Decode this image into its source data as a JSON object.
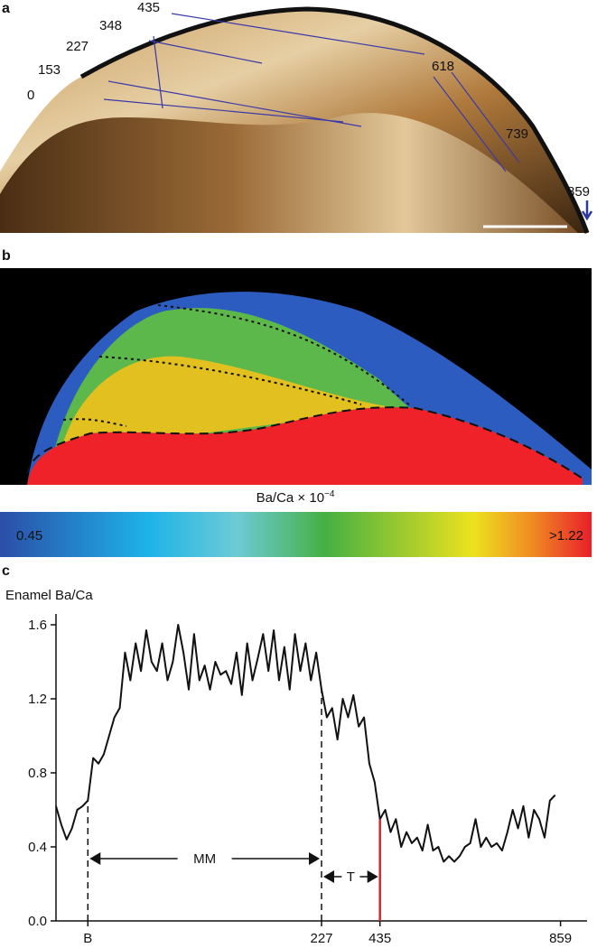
{
  "panel_a": {
    "label": "a",
    "markers": [
      0,
      153,
      227,
      348,
      435,
      618,
      739,
      859
    ]
  },
  "panel_b": {
    "label": "b",
    "colorbar": {
      "title": "Ba/Ca × 10",
      "title_exponent": "−4",
      "min_label": 0.45,
      "max_label": ">1.22"
    }
  },
  "panel_c": {
    "label": "c"
  },
  "chart_data": {
    "type": "line",
    "ylabel": "Enamel Ba/Ca",
    "x": [
      0,
      1,
      2,
      3,
      4,
      5,
      6,
      7,
      8,
      9,
      10,
      11,
      12,
      13,
      14,
      15,
      16,
      17,
      18,
      19,
      20,
      21,
      22,
      23,
      24,
      25,
      26,
      27,
      28,
      29,
      30,
      31,
      32,
      33,
      34,
      35,
      36,
      37,
      38,
      39,
      40,
      41,
      42,
      43,
      44,
      45,
      46,
      47,
      48,
      49,
      50,
      51,
      52,
      53,
      54,
      55,
      56,
      57,
      58,
      59,
      60,
      61,
      62,
      63,
      64,
      65,
      66,
      67,
      68,
      69,
      70,
      71,
      72,
      73,
      74,
      75,
      76,
      77,
      78,
      79,
      80,
      81,
      82,
      83,
      84,
      85,
      86,
      87,
      88,
      89,
      90,
      91,
      92,
      93,
      94
    ],
    "series": [
      {
        "color": "#111111",
        "values": [
          0.62,
          0.52,
          0.44,
          0.5,
          0.6,
          0.62,
          0.65,
          0.88,
          0.85,
          0.9,
          1.0,
          1.1,
          1.15,
          1.45,
          1.3,
          1.5,
          1.35,
          1.57,
          1.4,
          1.35,
          1.5,
          1.3,
          1.4,
          1.6,
          1.45,
          1.25,
          1.55,
          1.3,
          1.38,
          1.25,
          1.4,
          1.33,
          1.35,
          1.28,
          1.45,
          1.22,
          1.5,
          1.3,
          1.42,
          1.55,
          1.35,
          1.57,
          1.3,
          1.48,
          1.25,
          1.55,
          1.35,
          1.5,
          1.3,
          1.45,
          1.25,
          1.1,
          1.15,
          0.98,
          1.2,
          1.1,
          1.22,
          1.05,
          1.1,
          0.85,
          0.75,
          0.55,
          0.6,
          0.48,
          0.55,
          0.4,
          0.48,
          0.42,
          0.45,
          0.38,
          0.52,
          0.38,
          0.4,
          0.32,
          0.35,
          0.32,
          0.35,
          0.4,
          0.42,
          0.55,
          0.4,
          0.45,
          0.4,
          0.42,
          0.38,
          0.48,
          0.6,
          0.5,
          0.62,
          0.45,
          0.6,
          0.55,
          0.45,
          0.65,
          0.68
        ]
      }
    ],
    "xlim": [
      0,
      100
    ],
    "ylim": [
      0,
      1.6
    ],
    "xticks": [
      {
        "value": 6,
        "label": "B"
      },
      {
        "value": 50,
        "label": "227"
      },
      {
        "value": 61,
        "label": "435"
      },
      {
        "value": 95,
        "label": "859"
      }
    ],
    "yticks": [
      {
        "value": 0,
        "label": "0.0"
      },
      0.4,
      0.8,
      1.2,
      1.6
    ],
    "annotations": [
      "MM",
      "T"
    ],
    "marker_color": "#e0202a"
  }
}
